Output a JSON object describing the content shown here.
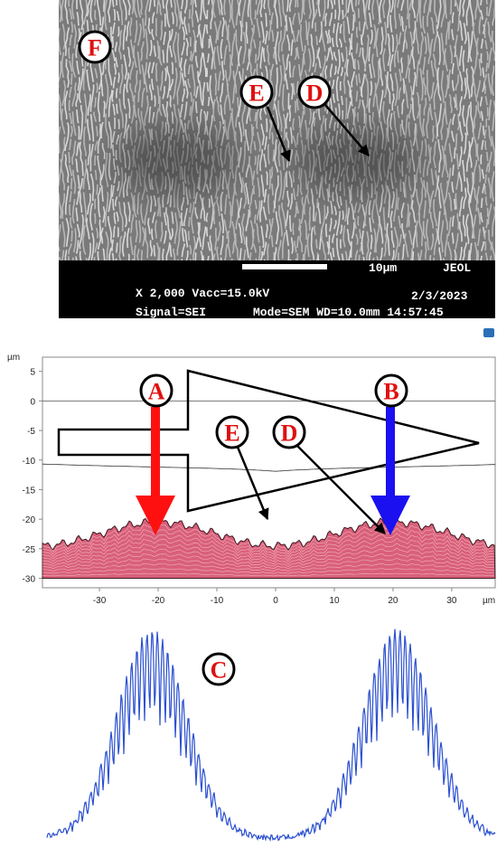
{
  "sem": {
    "labels": [
      "F",
      "E",
      "D"
    ],
    "scale": "10µm",
    "brand": "JEOL",
    "line1": "X 2,000 Vacc=15.0kV",
    "date": "2/3/2023",
    "line2a": "Signal=SEI",
    "line2b": "Mode=SEM WD=10.0mm 14:57:45"
  },
  "plot": {
    "unit_y": "µm",
    "unit_x": "µm",
    "xlim": [
      -39.7,
      37.4
    ],
    "ylim": [
      -31.6,
      7.4
    ],
    "xticks": [
      -30,
      -20,
      -10,
      0,
      10,
      20,
      30
    ],
    "yticks": [
      5,
      0,
      -5,
      -10,
      -15,
      -20,
      -25,
      -30
    ],
    "labels": [
      "A",
      "B",
      "E",
      "D"
    ]
  },
  "profile": {
    "label": "C"
  }
}
